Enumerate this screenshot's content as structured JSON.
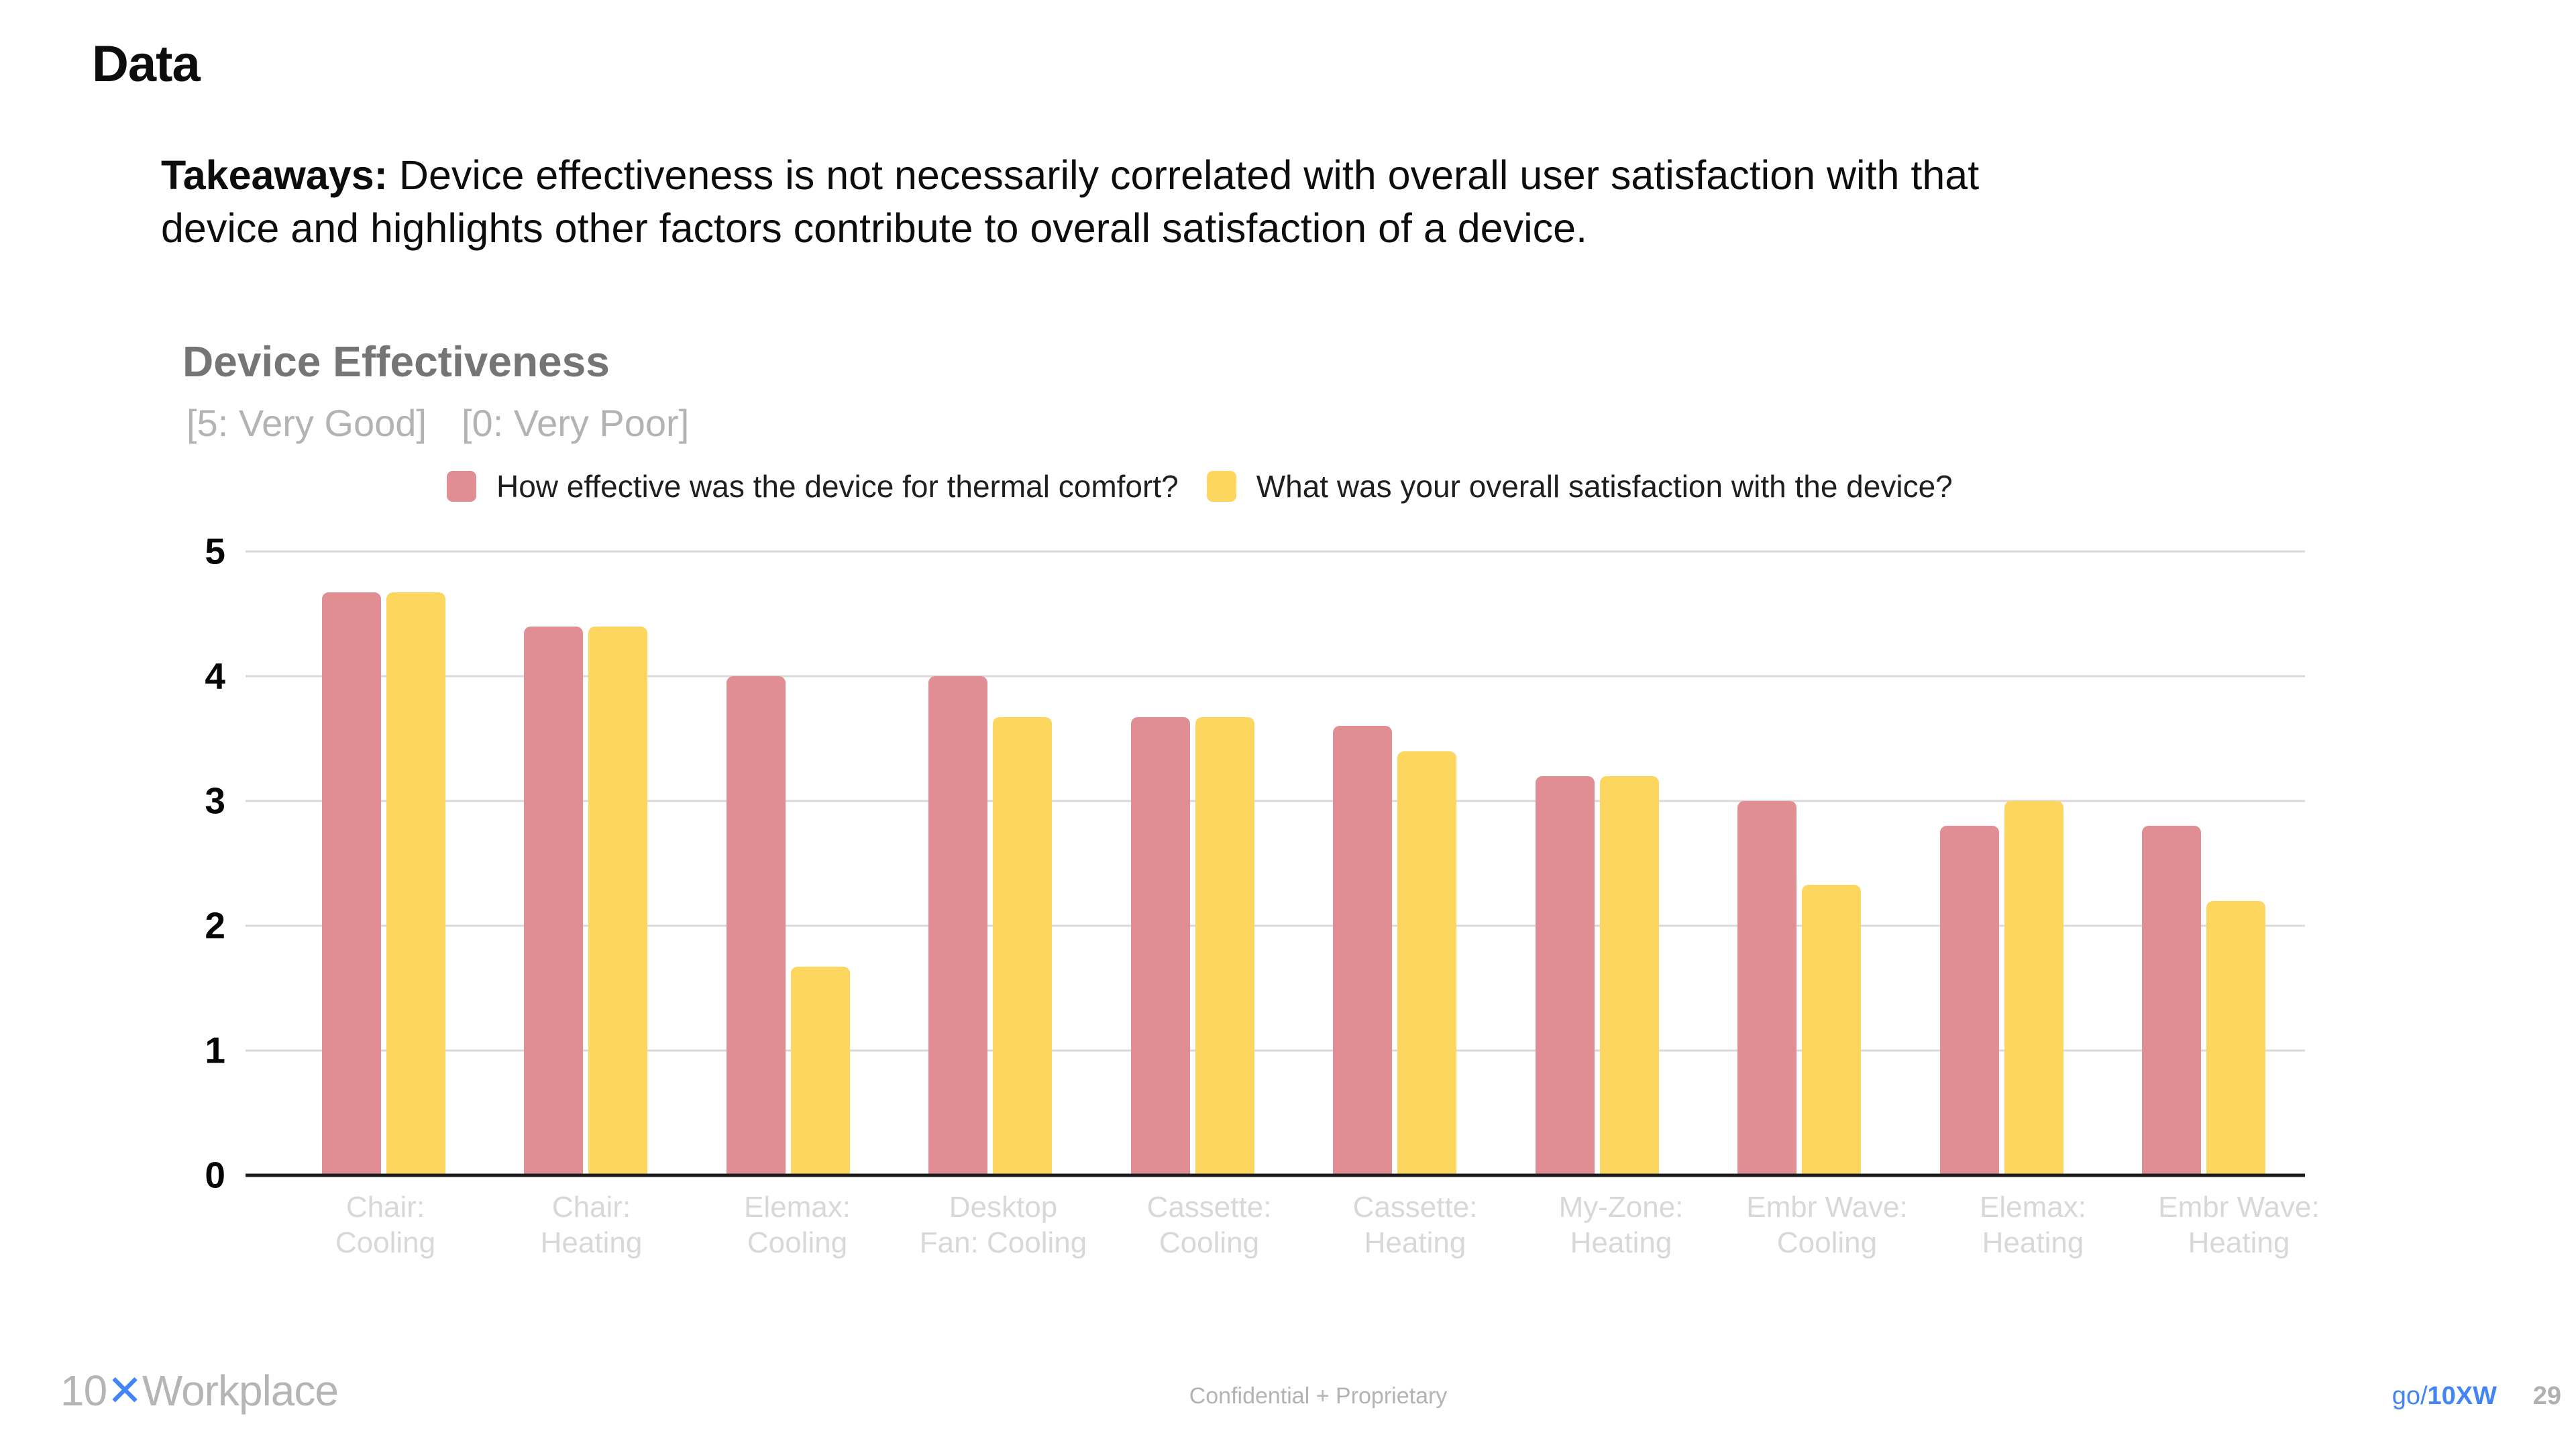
{
  "slide": {
    "heading": "Data",
    "takeaways": {
      "label": "Takeaways:",
      "text": " Device effectiveness is not necessarily correlated with overall user satisfaction with that device and highlights other factors contribute to overall satisfaction of a device."
    }
  },
  "chart_data": {
    "type": "bar",
    "title": "Device Effectiveness",
    "scale_labels": [
      "[5: Very Good]",
      "[0: Very Poor]"
    ],
    "categories": [
      "Chair:\nCooling",
      "Chair:\nHeating",
      "Elemax:\nCooling",
      "Desktop\nFan: Cooling",
      "Cassette:\nCooling",
      "Cassette:\nHeating",
      "My-Zone:\nHeating",
      "Embr Wave:\nCooling",
      "Elemax:\nHeating",
      "Embr Wave:\nHeating"
    ],
    "series": [
      {
        "name": "How effective was the device for thermal comfort?",
        "color": "#e08d93",
        "values": [
          4.67,
          4.4,
          4.0,
          4.0,
          3.67,
          3.6,
          3.2,
          3.0,
          2.8,
          2.8
        ]
      },
      {
        "name": "What was your overall satisfaction with the device?",
        "color": "#fcd65f",
        "values": [
          4.67,
          4.4,
          1.67,
          3.67,
          3.67,
          3.4,
          3.2,
          2.33,
          3.0,
          2.2
        ]
      }
    ],
    "ylim": [
      0,
      5
    ],
    "yticks": [
      5,
      4,
      3,
      2,
      1,
      0
    ],
    "grid": true,
    "legend_position": "top"
  },
  "footer": {
    "logo_prefix": "10",
    "logo_x": "✕",
    "logo_suffix": "Workplace",
    "confidential": "Confidential + Proprietary",
    "link_prefix": "go/",
    "link_bold": "10XW",
    "page_number": "29"
  },
  "colors": {
    "series_effectiveness": "#e08d93",
    "series_satisfaction": "#fcd65f",
    "accent_blue": "#4285f4",
    "gridline": "#d9d9d9",
    "axis_line": "#1c1c1c",
    "category_label": "#d8d8d8",
    "chart_title": "#757575",
    "chart_subtitle": "#b3b3b3"
  }
}
